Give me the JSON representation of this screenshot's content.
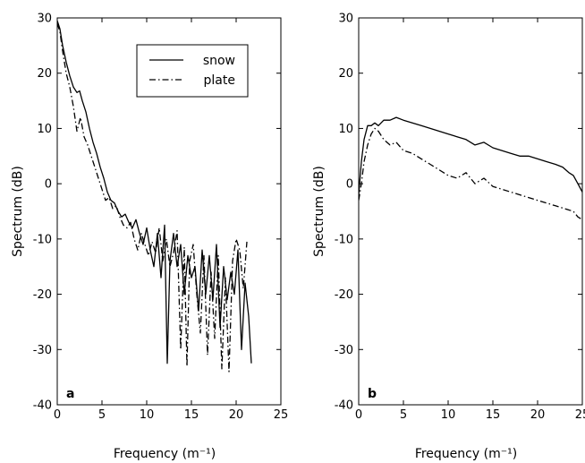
{
  "chart_data": [
    {
      "type": "line",
      "panel_label": "a",
      "xlabel": "Frequency (m⁻¹)",
      "ylabel": "Spectrum (dB)",
      "xlim": [
        0,
        25
      ],
      "ylim": [
        -40,
        30
      ],
      "xticks": [
        0,
        5,
        10,
        15,
        20,
        25
      ],
      "yticks": [
        -40,
        -30,
        -20,
        -10,
        0,
        10,
        20,
        30
      ],
      "grid": false,
      "legend": "top-right",
      "series": [
        {
          "name": "snow",
          "style": "solid",
          "color": "#000000",
          "x": [
            0.0,
            0.3,
            0.6,
            1.0,
            1.4,
            1.8,
            2.2,
            2.5,
            2.8,
            3.2,
            3.6,
            4.0,
            4.4,
            4.8,
            5.2,
            5.6,
            6.0,
            6.4,
            6.8,
            7.2,
            7.6,
            8.0,
            8.4,
            8.8,
            9.2,
            9.6,
            10.0,
            10.4,
            10.8,
            11.2,
            11.6,
            12.0,
            12.3,
            12.6,
            13.0,
            13.4,
            13.8,
            14.2,
            14.6,
            15.0,
            15.4,
            15.8,
            16.2,
            16.6,
            17.0,
            17.4,
            17.8,
            18.2,
            18.6,
            19.0,
            19.4,
            19.8,
            20.2,
            20.6,
            21.0,
            21.4,
            21.7
          ],
          "y": [
            29.5,
            28.0,
            25.0,
            22.0,
            19.5,
            17.5,
            16.5,
            16.8,
            15.0,
            13.0,
            10.0,
            7.5,
            5.5,
            3.0,
            1.0,
            -1.5,
            -3.0,
            -3.5,
            -5.0,
            -6.0,
            -5.5,
            -7.0,
            -8.0,
            -6.5,
            -9.0,
            -11.0,
            -8.0,
            -12.0,
            -15.0,
            -9.0,
            -17.0,
            -7.5,
            -32.5,
            -14.0,
            -9.0,
            -15.0,
            -11.0,
            -20.0,
            -13.0,
            -17.0,
            -15.0,
            -23.0,
            -12.0,
            -20.0,
            -13.0,
            -21.0,
            -11.0,
            -26.0,
            -15.0,
            -21.0,
            -16.0,
            -20.0,
            -12.0,
            -30.0,
            -18.0,
            -24.0,
            -32.5
          ]
        },
        {
          "name": "plate",
          "style": "dashdot",
          "color": "#000000",
          "x": [
            0.0,
            0.3,
            0.6,
            1.0,
            1.4,
            1.8,
            2.2,
            2.6,
            3.0,
            3.4,
            3.8,
            4.2,
            4.6,
            5.0,
            5.4,
            5.8,
            6.2,
            6.6,
            7.0,
            7.4,
            7.8,
            8.2,
            8.6,
            9.0,
            9.4,
            9.8,
            10.2,
            10.6,
            11.0,
            11.4,
            11.8,
            12.2,
            12.6,
            13.0,
            13.4,
            13.8,
            14.2,
            14.5,
            14.8,
            15.2,
            15.6,
            16.0,
            16.4,
            16.8,
            17.2,
            17.6,
            18.0,
            18.4,
            18.8,
            19.2,
            19.6,
            20.0,
            20.4,
            20.8,
            21.2
          ],
          "y": [
            29.0,
            27.5,
            24.0,
            20.0,
            17.5,
            14.0,
            9.5,
            12.0,
            8.5,
            7.0,
            5.0,
            3.0,
            1.0,
            -1.0,
            -3.0,
            -2.5,
            -4.5,
            -4.0,
            -6.0,
            -7.5,
            -8.0,
            -7.0,
            -10.0,
            -12.0,
            -9.0,
            -11.0,
            -13.0,
            -10.5,
            -12.5,
            -8.0,
            -14.0,
            -10.0,
            -15.0,
            -12.5,
            -8.5,
            -30.0,
            -11.5,
            -33.0,
            -14.0,
            -11.0,
            -20.0,
            -27.0,
            -13.0,
            -31.0,
            -16.0,
            -28.0,
            -13.0,
            -33.5,
            -17.0,
            -34.0,
            -14.0,
            -10.0,
            -12.0,
            -19.0,
            -10.5
          ]
        }
      ]
    },
    {
      "type": "line",
      "panel_label": "b",
      "xlabel": "Frequency (m⁻¹)",
      "ylabel": "Spectrum (dB)",
      "xlim": [
        0,
        25
      ],
      "ylim": [
        -40,
        30
      ],
      "xticks": [
        0,
        5,
        10,
        15,
        20,
        25
      ],
      "yticks": [
        -40,
        -30,
        -20,
        -10,
        0,
        10,
        20,
        30
      ],
      "grid": false,
      "series": [
        {
          "name": "snow",
          "style": "solid",
          "color": "#000000",
          "x": [
            0.0,
            0.3,
            0.6,
            1.0,
            1.4,
            1.8,
            2.2,
            2.8,
            3.5,
            4.2,
            5.0,
            6.0,
            7.0,
            8.0,
            9.0,
            10.0,
            11.0,
            12.0,
            13.0,
            14.0,
            15.0,
            16.0,
            17.0,
            18.0,
            19.0,
            20.0,
            21.0,
            22.0,
            22.8,
            23.5,
            24.0,
            24.5,
            25.0
          ],
          "y": [
            -2.0,
            4.0,
            8.0,
            10.5,
            10.5,
            11.0,
            10.5,
            11.5,
            11.5,
            12.0,
            11.5,
            11.0,
            10.5,
            10.0,
            9.5,
            9.0,
            8.5,
            8.0,
            7.0,
            7.5,
            6.5,
            6.0,
            5.5,
            5.0,
            5.0,
            4.5,
            4.0,
            3.5,
            3.0,
            2.0,
            1.5,
            0.0,
            -1.5
          ]
        },
        {
          "name": "plate",
          "style": "dashdot",
          "color": "#000000",
          "x": [
            0.0,
            0.3,
            0.6,
            1.0,
            1.4,
            1.8,
            2.2,
            2.8,
            3.5,
            4.2,
            5.0,
            6.0,
            7.0,
            8.0,
            9.0,
            10.0,
            11.0,
            12.0,
            13.0,
            14.0,
            15.0,
            16.0,
            17.0,
            18.0,
            19.0,
            20.0,
            21.0,
            22.0,
            23.0,
            24.0,
            24.5,
            25.0
          ],
          "y": [
            -3.0,
            0.0,
            4.0,
            7.0,
            9.0,
            10.0,
            9.5,
            8.0,
            7.0,
            7.5,
            6.0,
            5.5,
            4.5,
            3.5,
            2.5,
            1.5,
            1.0,
            2.0,
            0.0,
            1.0,
            -0.5,
            -1.0,
            -1.5,
            -2.0,
            -2.5,
            -3.0,
            -3.5,
            -4.0,
            -4.5,
            -5.0,
            -6.0,
            -6.5
          ]
        }
      ]
    }
  ]
}
